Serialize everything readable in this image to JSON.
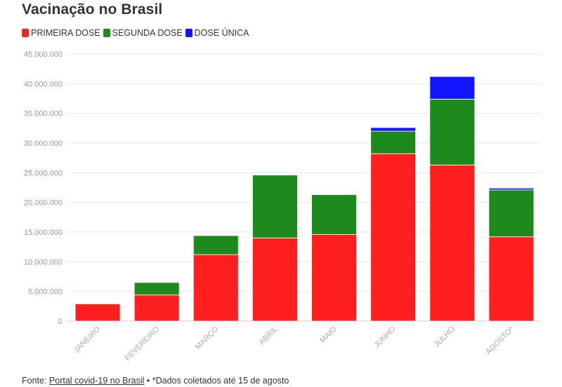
{
  "chart_data": {
    "type": "bar",
    "stacked": true,
    "title": "Vacinação no Brasil",
    "categories": [
      "JANEIRO",
      "FEVEREIRO",
      "MARÇO",
      "ABRIL",
      "MAIO",
      "JUNHO",
      "JULHO",
      "AGOSTO*"
    ],
    "series": [
      {
        "name": "PRIMEIRA DOSE",
        "color": "#ff1f1f",
        "values": [
          2900000,
          4400000,
          11200000,
          14000000,
          14600000,
          28200000,
          26300000,
          14200000
        ]
      },
      {
        "name": "SEGUNDA DOSE",
        "color": "#1e8a1e",
        "values": [
          0,
          2100000,
          3200000,
          10600000,
          6700000,
          3800000,
          11100000,
          7900000
        ]
      },
      {
        "name": "DOSE ÚNICA",
        "color": "#1414ff",
        "values": [
          0,
          0,
          0,
          0,
          0,
          600000,
          3800000,
          300000
        ]
      }
    ],
    "ylim": [
      0,
      45000000
    ],
    "yticks": [
      0,
      5000000,
      10000000,
      15000000,
      20000000,
      25000000,
      30000000,
      35000000,
      40000000,
      45000000
    ],
    "ytick_labels": [
      "0",
      "5.000.000",
      "10.000.000",
      "15.000.000",
      "20.000.000",
      "25.000.000",
      "30.000.000",
      "35.000.000",
      "40.000.000",
      "45.000.000"
    ],
    "xlabel": "",
    "ylabel": "",
    "grid": true,
    "legend_position": "top-left"
  },
  "footer": {
    "prefix": "Fonte: ",
    "link_text": "Portal covid-19 no Brasil",
    "suffix": " • *Dados coletados até 15 de agosto"
  }
}
